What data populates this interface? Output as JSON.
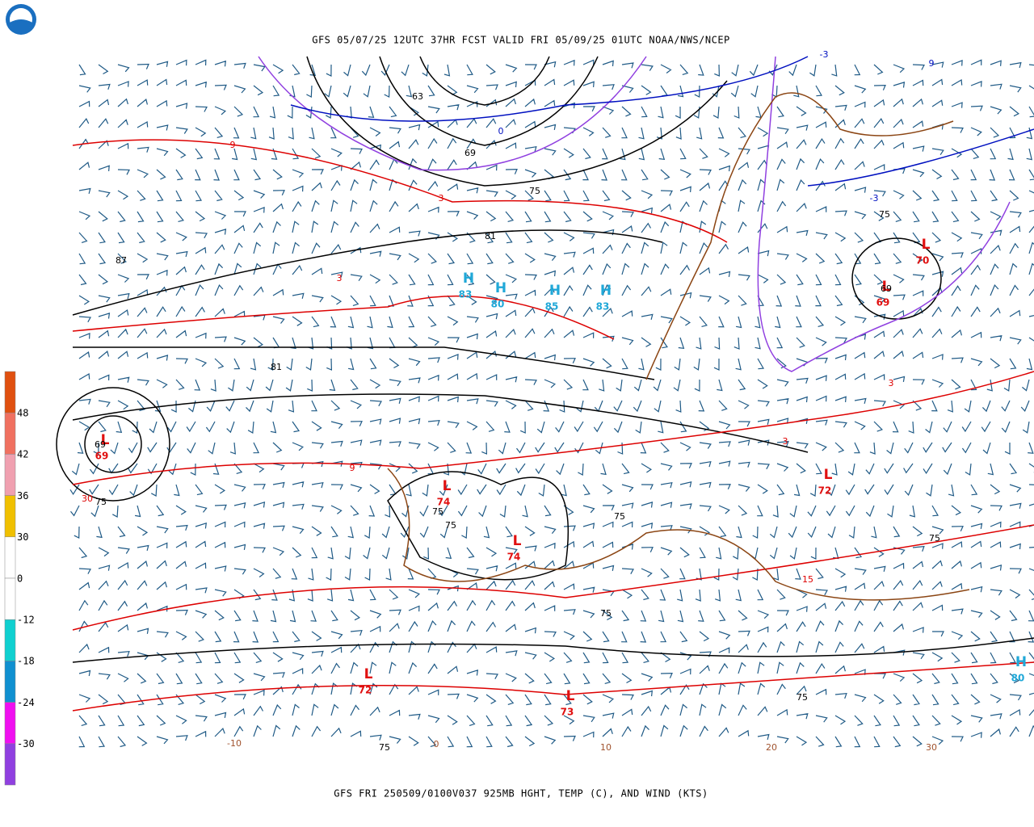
{
  "header": {
    "title": "GFS 05/07/25 12UTC 37HR FCST VALID FRI 05/09/25 01UTC NOAA/NWS/NCEP"
  },
  "footer": {
    "caption": "GFS FRI 250509/0100V037 925MB HGHT, TEMP (C), AND WIND (KTS)"
  },
  "colorbar": {
    "labels": [
      48,
      42,
      36,
      30,
      0,
      -12,
      -18,
      -24,
      -30
    ]
  },
  "centers": [
    {
      "label": "H",
      "value": 83
    },
    {
      "label": "H",
      "value": 80
    },
    {
      "label": "H",
      "value": 85
    },
    {
      "label": "H",
      "value": 83
    },
    {
      "label": "H",
      "value": 80
    },
    {
      "label": "L",
      "value": 70
    },
    {
      "label": "L",
      "value": 69
    },
    {
      "label": "L",
      "value": 69
    },
    {
      "label": "L",
      "value": 74
    },
    {
      "label": "L",
      "value": 74
    },
    {
      "label": "L",
      "value": 72
    },
    {
      "label": "L",
      "value": 72
    },
    {
      "label": "L",
      "value": 73
    }
  ],
  "contour_labels": {
    "height": [
      63,
      69,
      75,
      81,
      87,
      81,
      75,
      69,
      69,
      75,
      75,
      75,
      75,
      75,
      75,
      75,
      75
    ],
    "temperature": [
      9,
      3,
      3,
      3,
      3,
      9,
      30,
      15
    ],
    "dewpoint": [
      -3,
      -3,
      9,
      0
    ],
    "grid": [
      -10,
      0,
      10,
      20,
      30
    ]
  }
}
